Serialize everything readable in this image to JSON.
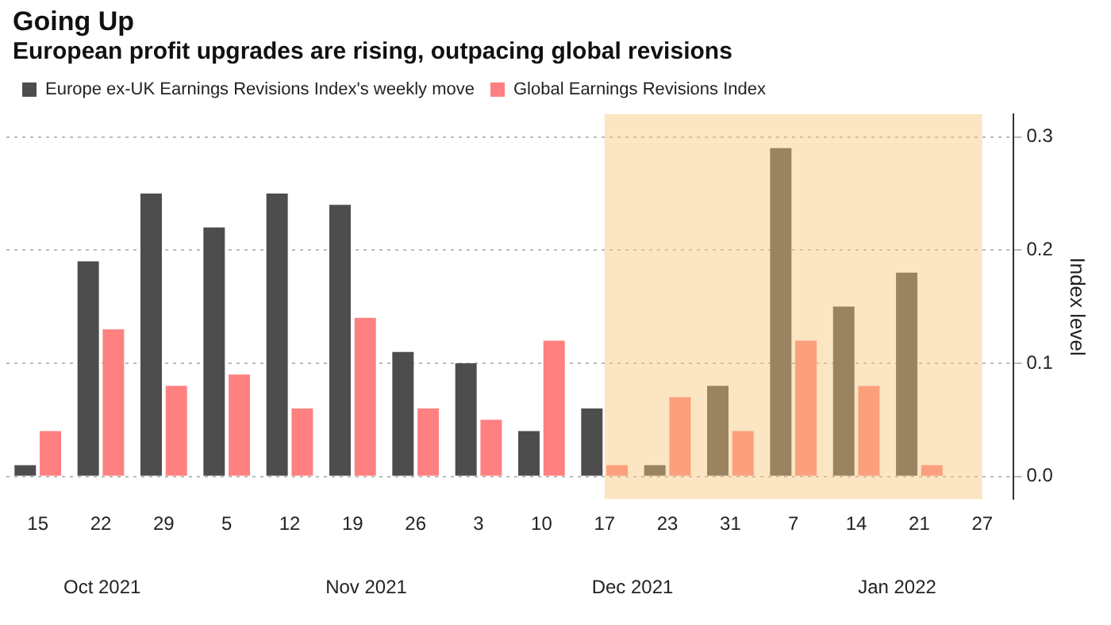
{
  "chart_data": {
    "type": "bar",
    "title": "Going Up",
    "subtitle": "European profit upgrades are rising, outpacing global revisions",
    "ylabel": "Index level",
    "categories": [
      "15",
      "22",
      "29",
      "5",
      "12",
      "19",
      "26",
      "3",
      "10",
      "17",
      "23",
      "31",
      "7",
      "14",
      "21",
      "27"
    ],
    "series": [
      {
        "name": "Europe ex-UK Earnings Revisions Index's weekly move",
        "color": "#4d4d4d",
        "values": [
          0.01,
          0.19,
          0.25,
          0.22,
          0.25,
          0.24,
          0.11,
          0.1,
          0.04,
          0.06,
          0.01,
          0.08,
          0.29,
          0.15,
          0.18,
          null
        ]
      },
      {
        "name": "Global Earnings Revisions Index",
        "color": "#ff8080",
        "values": [
          0.04,
          0.13,
          0.08,
          0.09,
          0.06,
          0.14,
          0.06,
          0.05,
          0.12,
          0.01,
          0.07,
          0.04,
          0.12,
          0.08,
          0.01,
          null
        ]
      }
    ],
    "ylim": [
      -0.02,
      0.32
    ],
    "yticks": [
      {
        "value": 0,
        "label": "0.0"
      },
      {
        "value": 0.1,
        "label": "0.1"
      },
      {
        "value": 0.2,
        "label": "0.2"
      },
      {
        "value": 0.3,
        "label": "0.3"
      }
    ],
    "grid": "y",
    "legend": "top left",
    "bands": [
      {
        "axis": "x",
        "from": "17",
        "to": "27",
        "color": "#f7c67a"
      }
    ],
    "annotations": [
      "Oct 2021",
      "Nov 2021",
      "Dec 2021",
      "Jan 2022"
    ]
  }
}
